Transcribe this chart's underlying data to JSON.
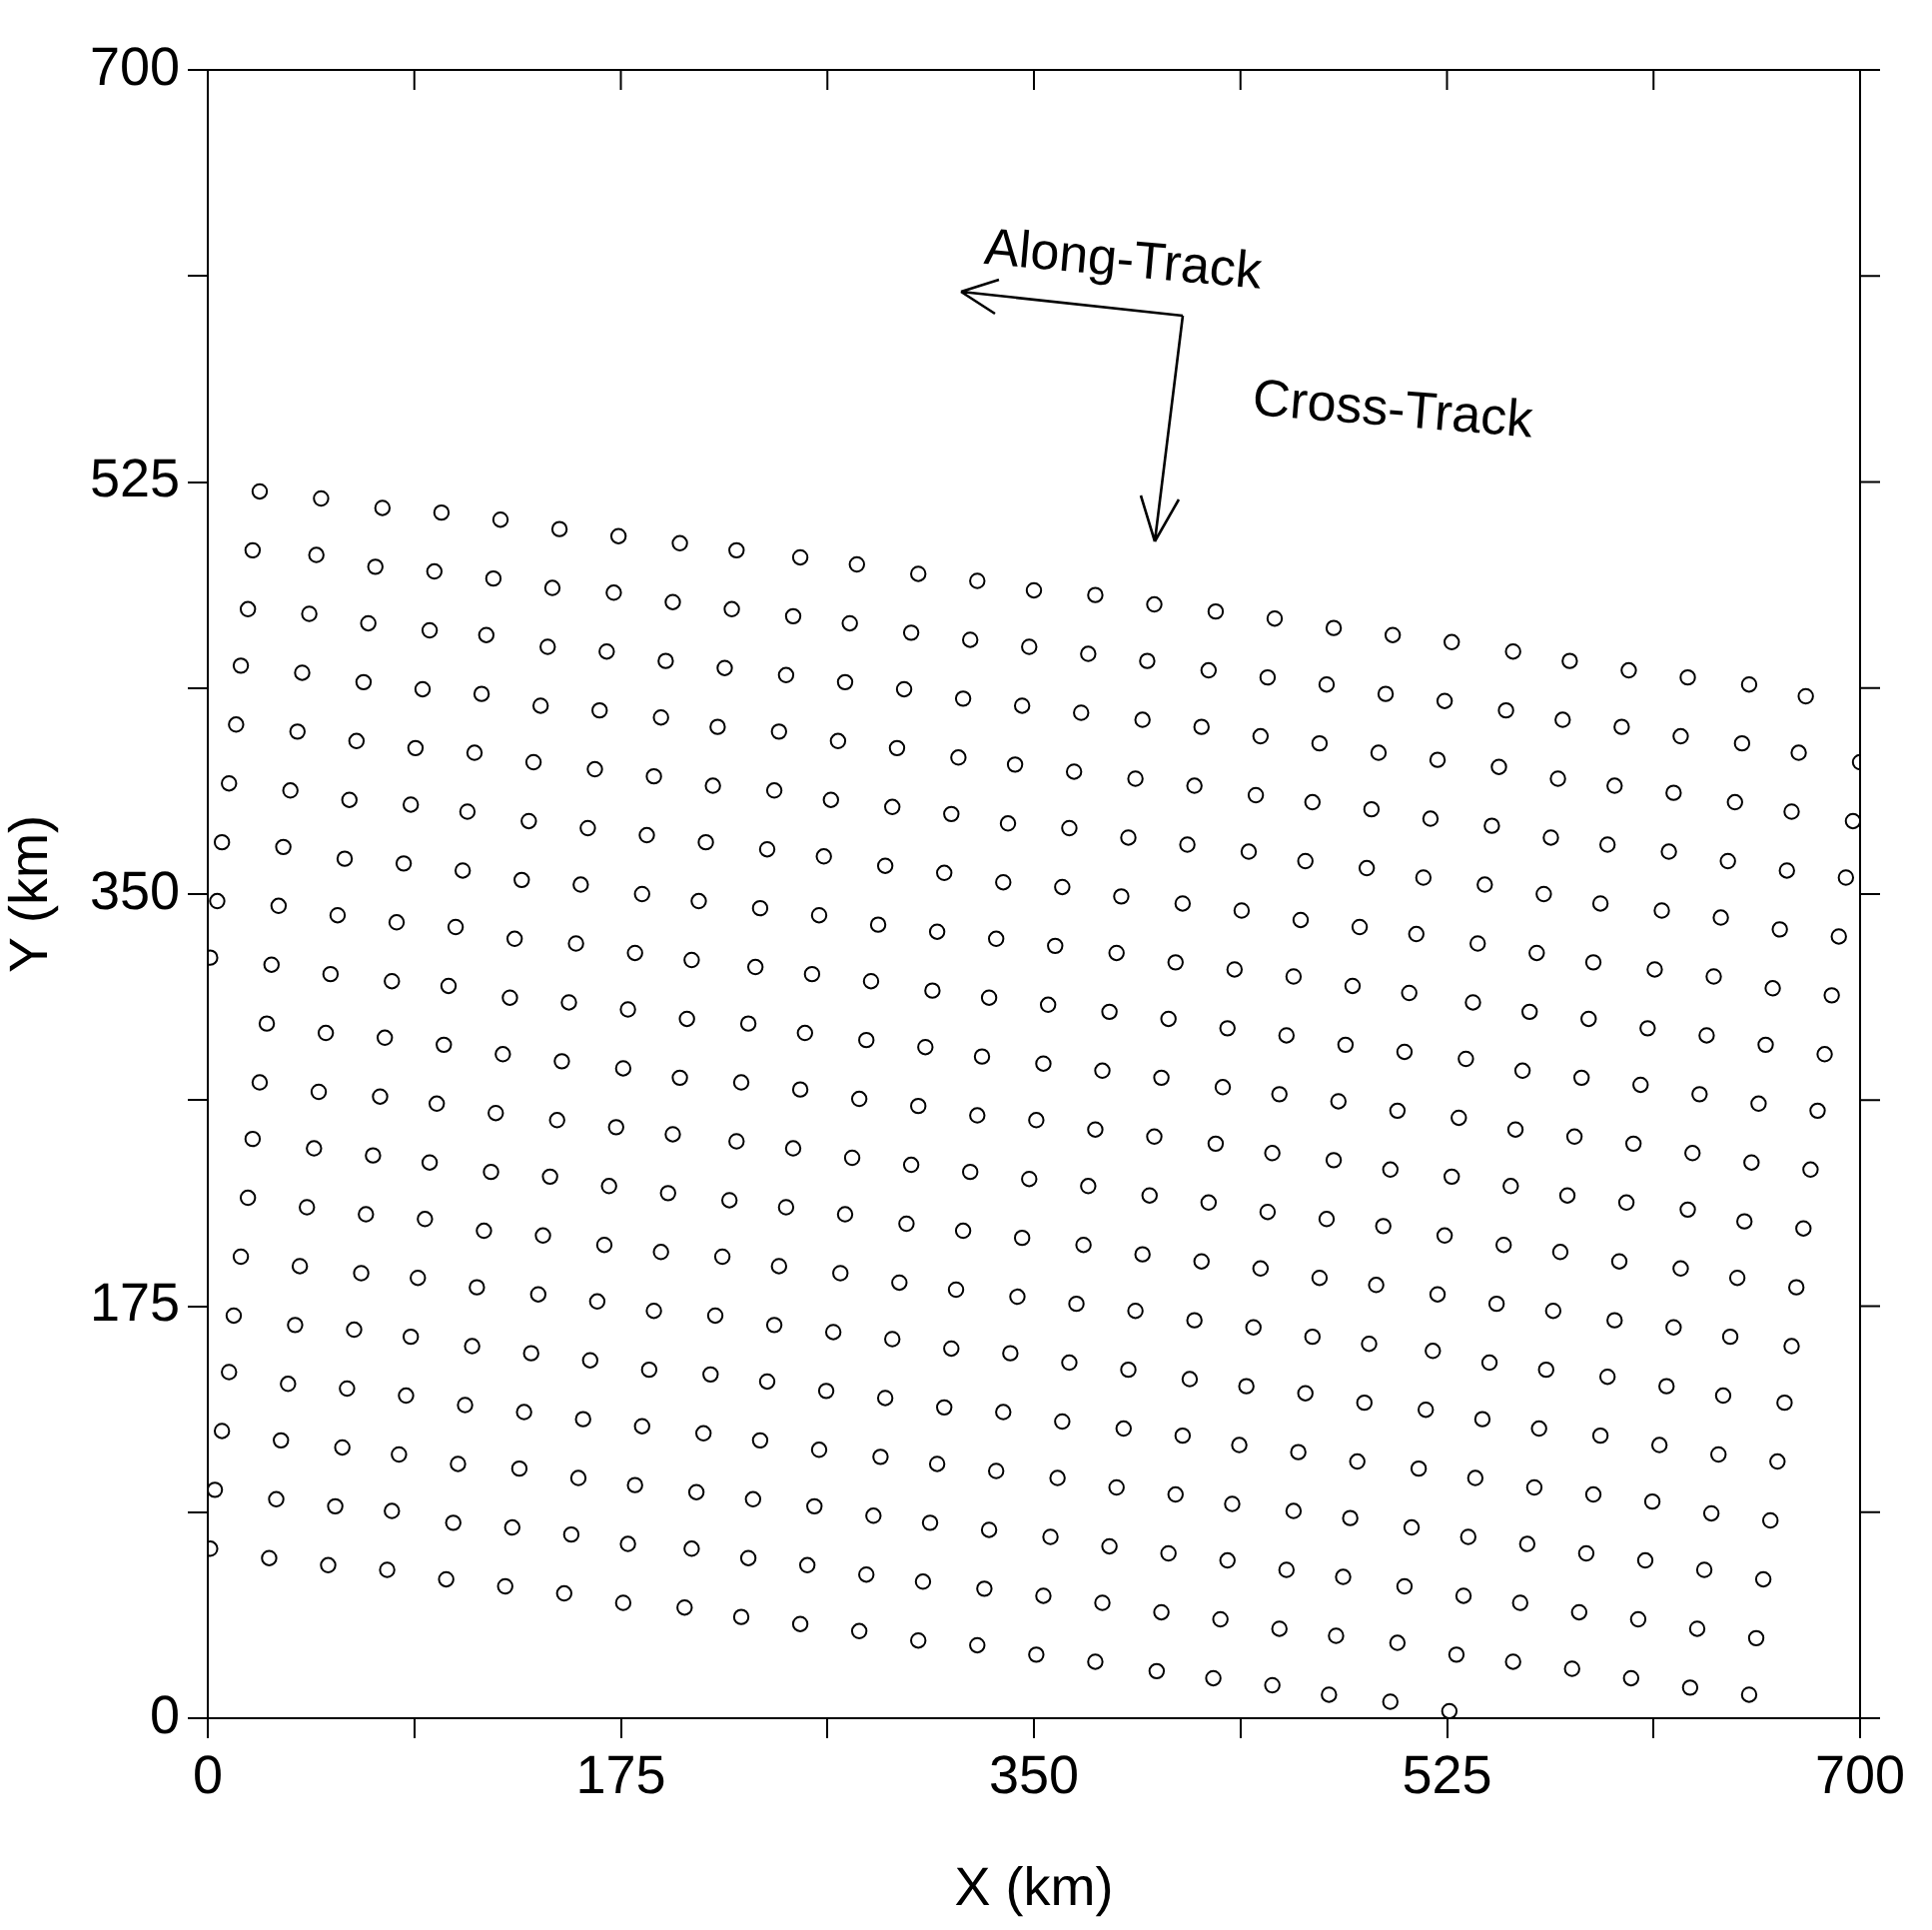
{
  "chart_data": {
    "type": "scatter",
    "xlabel": "X (km)",
    "ylabel": "Y (km)",
    "color": "#000000",
    "marker": "circle",
    "xlim": [
      0,
      700
    ],
    "ylim": [
      0,
      700
    ],
    "xticks": [
      0,
      {
        "value": 87.5,
        "label": null
      },
      175,
      {
        "value": 262.5,
        "label": null
      },
      350,
      {
        "value": 437.5,
        "label": null
      },
      525,
      {
        "value": 612.5,
        "label": null
      },
      700
    ],
    "yticks": [
      0,
      {
        "value": 87.5,
        "label": null
      },
      175,
      {
        "value": 262.5,
        "label": null
      },
      350,
      {
        "value": 437.5,
        "label": null
      },
      525,
      {
        "value": 612.5,
        "label": null
      },
      700
    ],
    "annotations": [
      "Along-Track",
      "Cross-Track"
    ],
    "series": [
      {
        "x": [
          22,
          19,
          17,
          14,
          12,
          9,
          6,
          4,
          1
        ],
        "values": [
          521,
          496,
          471,
          447,
          422,
          397,
          372,
          347,
          323
        ]
      },
      {
        "x": [
          48,
          46,
          43,
          40,
          38,
          35,
          32,
          30,
          27,
          25,
          22,
          19,
          17,
          14,
          11,
          9,
          6,
          3,
          1
        ],
        "values": [
          518,
          494,
          469,
          444,
          419,
          394,
          370,
          345,
          320,
          295,
          270,
          246,
          221,
          196,
          171,
          147,
          122,
          97,
          72
        ]
      },
      {
        "x": [
          74,
          71,
          68,
          66,
          63,
          60,
          58,
          55,
          52,
          50,
          47,
          45,
          42,
          39,
          37,
          34,
          31,
          29,
          26
        ],
        "values": [
          514,
          489,
          465,
          440,
          415,
          390,
          365,
          341,
          316,
          291,
          266,
          242,
          217,
          192,
          167,
          142,
          118,
          93,
          68
        ]
      },
      {
        "x": [
          99,
          96,
          94,
          91,
          88,
          86,
          83,
          80,
          78,
          75,
          73,
          70,
          67,
          65,
          62,
          59,
          57,
          54,
          51
        ],
        "values": [
          512,
          487,
          462,
          437,
          412,
          388,
          363,
          338,
          313,
          289,
          264,
          239,
          214,
          189,
          165,
          140,
          115,
          90,
          65
        ]
      },
      {
        "x": [
          124,
          121,
          118,
          116,
          113,
          110,
          108,
          105,
          102,
          100,
          97,
          94,
          92,
          89,
          86,
          84,
          81,
          78,
          76
        ],
        "values": [
          509,
          484,
          460,
          435,
          410,
          385,
          360,
          336,
          311,
          286,
          261,
          236,
          212,
          187,
          162,
          137,
          112,
          88,
          63
        ]
      },
      {
        "x": [
          149,
          146,
          144,
          141,
          138,
          136,
          133,
          130,
          128,
          125,
          122,
          120,
          117,
          114,
          112,
          109,
          106,
          104,
          101
        ],
        "values": [
          505,
          480,
          455,
          430,
          406,
          381,
          356,
          331,
          306,
          282,
          257,
          232,
          207,
          183,
          158,
          133,
          108,
          83,
          59
        ]
      },
      {
        "x": [
          174,
          172,
          169,
          166,
          164,
          161,
          158,
          156,
          153,
          150,
          148,
          145,
          142,
          140,
          137,
          134,
          132,
          129,
          126
        ],
        "values": [
          502,
          478,
          453,
          428,
          403,
          378,
          354,
          329,
          304,
          279,
          254,
          230,
          205,
          180,
          155,
          130,
          106,
          81,
          56
        ]
      },
      {
        "x": [
          200,
          197,
          194,
          192,
          189,
          186,
          184,
          181,
          178,
          176,
          173,
          170,
          168,
          165,
          162,
          159,
          157,
          154,
          151
        ],
        "values": [
          499,
          474,
          449,
          425,
          400,
          375,
          350,
          325,
          301,
          276,
          251,
          226,
          201,
          177,
          152,
          127,
          102,
          78,
          53
        ]
      },
      {
        "x": [
          224,
          222,
          219,
          216,
          214,
          211,
          208,
          205,
          203,
          200,
          197,
          195,
          192,
          189,
          187,
          184,
          181,
          178,
          176
        ],
        "values": [
          496,
          471,
          446,
          421,
          396,
          372,
          347,
          322,
          297,
          272,
          248,
          223,
          198,
          173,
          148,
          124,
          99,
          74,
          49
        ]
      },
      {
        "x": [
          251,
          248,
          245,
          242,
          240,
          237,
          234,
          232,
          229,
          226,
          224,
          221,
          218,
          215,
          213,
          210,
          207,
          205,
          202
        ],
        "values": [
          493,
          468,
          443,
          419,
          394,
          369,
          344,
          319,
          295,
          270,
          245,
          220,
          196,
          171,
          146,
          121,
          96,
          72,
          47
        ]
      },
      {
        "x": [
          275,
          272,
          270,
          267,
          264,
          261,
          259,
          256,
          253,
          251,
          248,
          245,
          242,
          240,
          237,
          234,
          231,
          229,
          226
        ],
        "values": [
          490,
          465,
          440,
          415,
          390,
          366,
          341,
          316,
          291,
          267,
          242,
          217,
          192,
          167,
          143,
          118,
          93,
          68,
          43
        ]
      },
      {
        "x": [
          301,
          298,
          295,
          292,
          290,
          287,
          284,
          281,
          279,
          276,
          273,
          270,
          268,
          265,
          262,
          259,
          257,
          254,
          251
        ],
        "values": [
          486,
          461,
          437,
          412,
          387,
          362,
          337,
          313,
          288,
          263,
          238,
          214,
          189,
          164,
          139,
          114,
          90,
          65,
          40
        ]
      },
      {
        "x": [
          326,
          323,
          320,
          318,
          315,
          312,
          309,
          307,
          304,
          301,
          298,
          296,
          293,
          290,
          287,
          285,
          282,
          279,
          276
        ],
        "values": [
          483,
          458,
          433,
          408,
          384,
          359,
          334,
          309,
          285,
          260,
          235,
          210,
          185,
          161,
          136,
          111,
          86,
          61,
          37
        ]
      },
      {
        "x": [
          350,
          348,
          345,
          342,
          339,
          337,
          334,
          331,
          328,
          326,
          323,
          320,
          317,
          315,
          312,
          309,
          306,
          303,
          301
        ],
        "values": [
          479,
          455,
          430,
          405,
          380,
          355,
          331,
          306,
          281,
          256,
          232,
          207,
          182,
          157,
          132,
          108,
          83,
          58,
          33
        ]
      },
      {
        "x": [
          376,
          373,
          370,
          367,
          365,
          362,
          359,
          356,
          354,
          351,
          348,
          345,
          343,
          340,
          337,
          334,
          331,
          329,
          326
        ],
        "values": [
          477,
          452,
          427,
          402,
          378,
          353,
          328,
          303,
          278,
          254,
          229,
          204,
          179,
          155,
          130,
          105,
          80,
          55,
          31
        ]
      },
      {
        "x": [
          401,
          398,
          396,
          393,
          390,
          387,
          385,
          382,
          379,
          376,
          373,
          371,
          368,
          365,
          362,
          360,
          357,
          354,
          351
        ],
        "values": [
          473,
          449,
          424,
          399,
          374,
          349,
          325,
          300,
          275,
          250,
          226,
          201,
          176,
          151,
          126,
          102,
          77,
          52,
          27
        ]
      },
      {
        "x": [
          427,
          424,
          421,
          418,
          415,
          413,
          410,
          407,
          404,
          401,
          399,
          396,
          393,
          390,
          388,
          385,
          382,
          379,
          376
        ],
        "values": [
          470,
          445,
          421,
          396,
          371,
          346,
          321,
          297,
          272,
          247,
          222,
          197,
          173,
          148,
          123,
          98,
          73,
          49,
          24
        ]
      },
      {
        "x": [
          452,
          449,
          446,
          444,
          441,
          438,
          435,
          432,
          430,
          427,
          424,
          421,
          418,
          416,
          413,
          410,
          407,
          404,
          402
        ],
        "values": [
          467,
          442,
          417,
          392,
          368,
          343,
          318,
          293,
          268,
          244,
          219,
          194,
          169,
          144,
          120,
          95,
          70,
          45,
          20
        ]
      },
      {
        "x": [
          477,
          474,
          471,
          468,
          465,
          463,
          460,
          457,
          454,
          451,
          449,
          446,
          443,
          440,
          437,
          434,
          432,
          429,
          426
        ],
        "values": [
          463,
          439,
          414,
          389,
          364,
          339,
          315,
          290,
          265,
          240,
          215,
          191,
          166,
          141,
          116,
          91,
          67,
          42,
          17
        ]
      },
      {
        "x": [
          502,
          499,
          496,
          493,
          491,
          488,
          485,
          482,
          479,
          477,
          474,
          471,
          468,
          465,
          462,
          460,
          457,
          454,
          451
        ],
        "values": [
          460,
          435,
          410,
          386,
          361,
          336,
          311,
          286,
          262,
          237,
          212,
          187,
          162,
          138,
          113,
          88,
          63,
          38,
          14
        ]
      },
      {
        "x": [
          527,
          524,
          521,
          518,
          515,
          512,
          509,
          507,
          504,
          501,
          498,
          495,
          492,
          490,
          487,
          484,
          481,
          478,
          475
        ],
        "values": [
          457,
          432,
          407,
          382,
          357,
          333,
          308,
          283,
          258,
          233,
          209,
          184,
          159,
          134,
          109,
          85,
          60,
          35,
          10
        ]
      },
      {
        "x": [
          553,
          550,
          547,
          544,
          541,
          538,
          536,
          533,
          530,
          527,
          524,
          521,
          519,
          516,
          513,
          510,
          507,
          504,
          501
        ],
        "values": [
          453,
          428,
          404,
          379,
          354,
          329,
          304,
          280,
          255,
          230,
          205,
          180,
          156,
          131,
          106,
          81,
          56,
          32,
          7
        ]
      },
      {
        "x": [
          577,
          574,
          572,
          569,
          566,
          563,
          560,
          557,
          554,
          552,
          549,
          546,
          543,
          540,
          537,
          534,
          532,
          529,
          526
        ],
        "values": [
          449,
          424,
          399,
          374,
          350,
          325,
          300,
          275,
          250,
          226,
          201,
          176,
          151,
          127,
          102,
          77,
          52,
          27,
          3
        ]
      },
      {
        "x": [
          602,
          599,
          596,
          593,
          590,
          587,
          585,
          582,
          579,
          576,
          573,
          570,
          567,
          564,
          562,
          559,
          556,
          553
        ],
        "values": [
          445,
          421,
          396,
          371,
          346,
          321,
          297,
          272,
          247,
          222,
          198,
          173,
          148,
          123,
          98,
          74,
          49,
          24
        ]
      },
      {
        "x": [
          627,
          624,
          621,
          619,
          616,
          613,
          610,
          607,
          604,
          601,
          598,
          596,
          593,
          590,
          587,
          584,
          581,
          578
        ],
        "values": [
          442,
          417,
          393,
          368,
          343,
          318,
          293,
          269,
          244,
          219,
          194,
          169,
          145,
          120,
          95,
          70,
          45,
          21
        ]
      },
      {
        "x": [
          653,
          650,
          647,
          644,
          641,
          638,
          635,
          632,
          629,
          627,
          624,
          621,
          618,
          615,
          612,
          609,
          606,
          603
        ],
        "values": [
          439,
          414,
          389,
          364,
          340,
          315,
          290,
          265,
          240,
          216,
          191,
          166,
          141,
          116,
          92,
          67,
          42,
          17
        ]
      },
      {
        "x": [
          677,
          674,
          671,
          669,
          666,
          663,
          660,
          657,
          654,
          651,
          648,
          645,
          642,
          640,
          637,
          634,
          631,
          628
        ],
        "values": [
          434,
          410,
          385,
          360,
          335,
          310,
          286,
          261,
          236,
          211,
          187,
          162,
          137,
          112,
          87,
          63,
          38,
          13
        ]
      },
      {
        "x": [
          700,
          697,
          694,
          691,
          688,
          685,
          682,
          679,
          676,
          673,
          671,
          668,
          665,
          662,
          659,
          656,
          653
        ],
        "values": [
          406,
          381,
          357,
          332,
          307,
          282,
          258,
          233,
          208,
          183,
          158,
          134,
          109,
          84,
          59,
          34,
          10
        ]
      }
    ]
  }
}
